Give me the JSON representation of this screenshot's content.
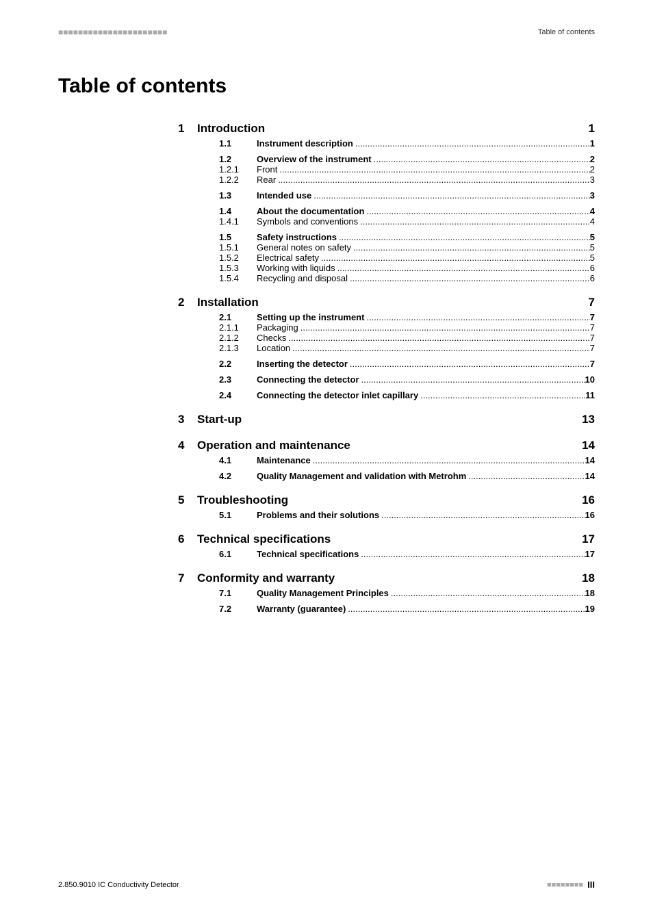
{
  "header": {
    "dashes_left": "■■■■■■■■■■■■■■■■■■■■■■",
    "right_text": "Table of contents"
  },
  "title": "Table of contents",
  "leader_dots": "....................................................................................................................................................................",
  "chapters": [
    {
      "num": "1",
      "title": "Introduction",
      "page": "1",
      "sections": [
        {
          "num": "1.1",
          "title": "Instrument description",
          "page": "1",
          "bold": true
        },
        {
          "gap": true
        },
        {
          "num": "1.2",
          "title": "Overview of the instrument",
          "page": "2",
          "bold": true
        },
        {
          "num": "1.2.1",
          "title": "Front",
          "page": "2",
          "bold": false
        },
        {
          "num": "1.2.2",
          "title": "Rear",
          "page": "3",
          "bold": false
        },
        {
          "gap": true
        },
        {
          "num": "1.3",
          "title": "Intended use",
          "page": "3",
          "bold": true
        },
        {
          "gap": true
        },
        {
          "num": "1.4",
          "title": "About the documentation",
          "page": "4",
          "bold": true
        },
        {
          "num": "1.4.1",
          "title": "Symbols and conventions",
          "page": "4",
          "bold": false
        },
        {
          "gap": true
        },
        {
          "num": "1.5",
          "title": "Safety instructions",
          "page": "5",
          "bold": true
        },
        {
          "num": "1.5.1",
          "title": "General notes on safety",
          "page": "5",
          "bold": false
        },
        {
          "num": "1.5.2",
          "title": "Electrical safety",
          "page": "5",
          "bold": false
        },
        {
          "num": "1.5.3",
          "title": "Working with liquids",
          "page": "6",
          "bold": false
        },
        {
          "num": "1.5.4",
          "title": "Recycling and disposal",
          "page": "6",
          "bold": false
        }
      ]
    },
    {
      "num": "2",
      "title": "Installation",
      "page": "7",
      "sections": [
        {
          "num": "2.1",
          "title": "Setting up the instrument",
          "page": "7",
          "bold": true
        },
        {
          "num": "2.1.1",
          "title": "Packaging",
          "page": "7",
          "bold": false
        },
        {
          "num": "2.1.2",
          "title": "Checks",
          "page": "7",
          "bold": false
        },
        {
          "num": "2.1.3",
          "title": "Location",
          "page": "7",
          "bold": false
        },
        {
          "gap": true
        },
        {
          "num": "2.2",
          "title": "Inserting the detector",
          "page": "7",
          "bold": true
        },
        {
          "gap": true
        },
        {
          "num": "2.3",
          "title": "Connecting the detector",
          "page": "10",
          "bold": true
        },
        {
          "gap": true
        },
        {
          "num": "2.4",
          "title": "Connecting the detector inlet capillary",
          "page": "11",
          "bold": true
        }
      ]
    },
    {
      "num": "3",
      "title": "Start-up",
      "page": "13",
      "sections": []
    },
    {
      "num": "4",
      "title": "Operation and maintenance",
      "page": "14",
      "sections": [
        {
          "num": "4.1",
          "title": "Maintenance",
          "page": "14",
          "bold": true
        },
        {
          "gap": true
        },
        {
          "num": "4.2",
          "title": "Quality Management and validation with Metrohm",
          "page": "14",
          "bold": true
        }
      ]
    },
    {
      "num": "5",
      "title": "Troubleshooting",
      "page": "16",
      "sections": [
        {
          "num": "5.1",
          "title": "Problems and their solutions",
          "page": "16",
          "bold": true
        }
      ]
    },
    {
      "num": "6",
      "title": "Technical specifications",
      "page": "17",
      "sections": [
        {
          "num": "6.1",
          "title": "Technical specifications",
          "page": "17",
          "bold": true
        }
      ]
    },
    {
      "num": "7",
      "title": "Conformity and warranty",
      "page": "18",
      "sections": [
        {
          "num": "7.1",
          "title": "Quality Management Principles",
          "page": "18",
          "bold": true
        },
        {
          "gap": true
        },
        {
          "num": "7.2",
          "title": "Warranty (guarantee)",
          "page": "19",
          "bold": true
        }
      ]
    }
  ],
  "footer": {
    "left": "2.850.9010 IC Conductivity Detector",
    "dashes": "■■■■■■■■",
    "roman": "III"
  }
}
